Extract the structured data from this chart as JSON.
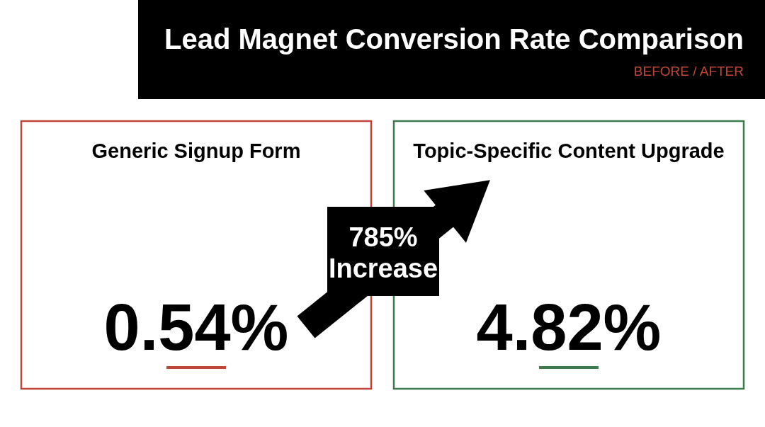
{
  "chart_data": {
    "type": "other",
    "title": "Lead Magnet Conversion Rate Comparison",
    "subtitle": "BEFORE / AFTER",
    "categories": [
      "Generic Signup Form",
      "Topic-Specific Content Upgrade"
    ],
    "values": [
      0.54,
      4.82
    ],
    "value_labels": [
      "0.54%",
      "4.82%"
    ],
    "colors": [
      "#c0463a",
      "#3d7a4e"
    ],
    "annotations": [
      "785% Increase"
    ]
  }
}
